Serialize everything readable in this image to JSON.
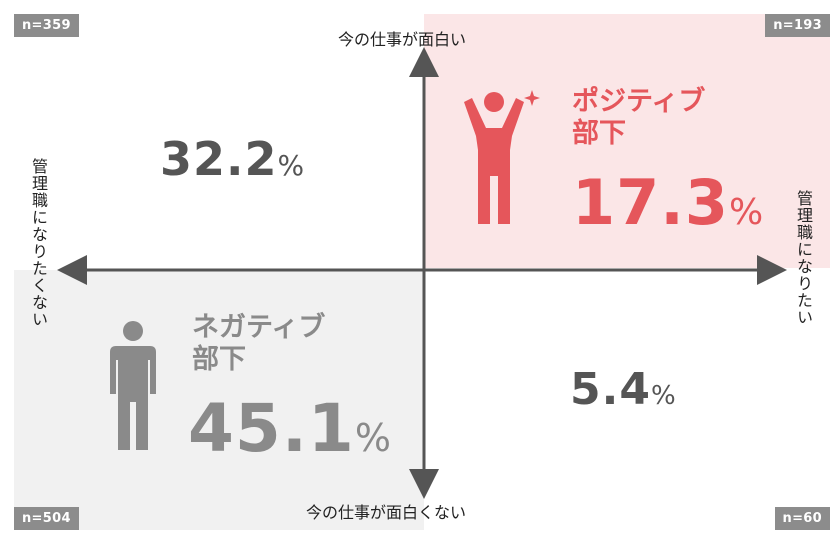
{
  "counts": {
    "top_left": "n=359",
    "top_right": "n=193",
    "bottom_left": "n=504",
    "bottom_right": "n=60"
  },
  "axes": {
    "top": "今の仕事が面白い",
    "bottom": "今の仕事が面白くない",
    "left": "管理職になりたくない",
    "right": "管理職になりたい"
  },
  "quadrants": {
    "top_left": {
      "value": "32.2",
      "unit": "%"
    },
    "top_right": {
      "title_line1": "ポジティブ",
      "title_line2": "部下",
      "value": "17.3",
      "unit": "%"
    },
    "bottom_left": {
      "title_line1": "ネガティブ",
      "title_line2": "部下",
      "value": "45.1",
      "unit": "%"
    },
    "bottom_right": {
      "value": "5.4",
      "unit": "%"
    }
  },
  "colors": {
    "positive": "#e5565b",
    "positive_bg": "#fbe6e7",
    "negative": "#8a8a8a",
    "negative_bg": "#f1f1f1",
    "neutral_text": "#555555",
    "badge": "#8c8c8c",
    "axis": "#555555"
  },
  "icons": {
    "positive": "person-cheering-icon",
    "negative": "person-standing-icon"
  }
}
